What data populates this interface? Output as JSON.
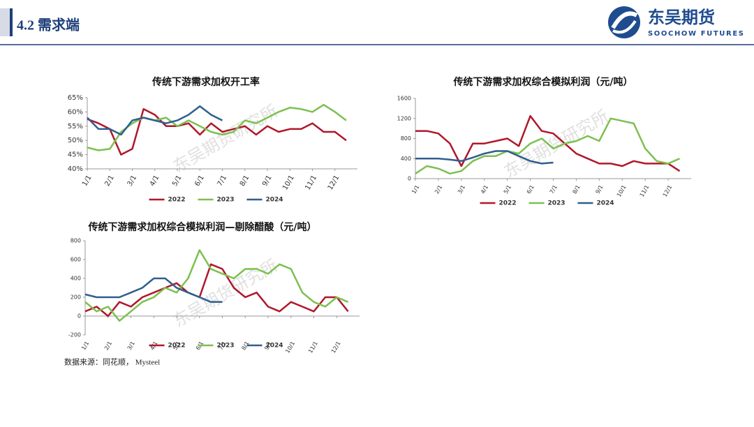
{
  "header": {
    "title": "4.2 需求端",
    "logo_cn": "东吴期货",
    "logo_en": "SOOCHOW FUTURES"
  },
  "watermark": "东吴期货研究所",
  "source": "数据来源：同花顺，  Mysteel",
  "chart_data": [
    {
      "type": "line",
      "title": "传统下游需求加权开工率",
      "categories": [
        "1/1",
        null,
        "2/1",
        null,
        "3/1",
        null,
        "4/1",
        null,
        "5/1",
        null,
        "6/1",
        null,
        "7/1",
        null,
        "8/1",
        null,
        "9/1",
        null,
        "10/1",
        null,
        "11/1",
        null,
        "12/1",
        null
      ],
      "ylim": [
        40,
        65
      ],
      "yticks": [
        {
          "value": 40,
          "label": "40%"
        },
        {
          "value": 45,
          "label": "45%"
        },
        {
          "value": 50,
          "label": "50%"
        },
        {
          "value": 55,
          "label": "55%"
        },
        {
          "value": 60,
          "label": "60%"
        },
        {
          "value": 65,
          "label": "65%"
        }
      ],
      "series": [
        {
          "name": "2022",
          "color": "#b0172a",
          "values": [
            57.5,
            56,
            54,
            45,
            47,
            61,
            59,
            55,
            55,
            56,
            52,
            56,
            53,
            54,
            55,
            52,
            55,
            53,
            54,
            54,
            56,
            53,
            53,
            50
          ]
        },
        {
          "name": "2023",
          "color": "#7cc04f",
          "values": [
            47.5,
            46.5,
            47,
            53,
            56,
            58,
            57,
            58,
            55,
            57,
            55,
            53,
            52,
            53,
            57,
            56,
            58,
            60,
            61.5,
            61,
            60,
            62.5,
            60,
            57
          ]
        },
        {
          "name": "2024",
          "color": "#2f5f8e",
          "values": [
            58,
            54,
            54,
            52,
            57,
            58,
            57,
            56,
            57,
            59,
            62,
            59,
            57,
            null,
            null,
            null,
            null,
            null,
            null,
            null,
            null,
            null,
            null,
            null
          ]
        }
      ]
    },
    {
      "type": "line",
      "title": "传统下游需求加权综合模拟利润（元/吨）",
      "categories": [
        "1/1",
        null,
        "2/1",
        null,
        "3/1",
        null,
        "4/1",
        null,
        "5/1",
        null,
        "6/1",
        null,
        "7/1",
        null,
        "8/1",
        null,
        "9/1",
        null,
        "10/1",
        null,
        "11/1",
        null,
        "12/1",
        null
      ],
      "ylim": [
        0,
        1600
      ],
      "yticks": [
        0,
        400,
        800,
        1200,
        1600
      ],
      "series": [
        {
          "name": "2022",
          "color": "#b0172a",
          "values": [
            950,
            950,
            900,
            700,
            250,
            700,
            700,
            750,
            800,
            650,
            1250,
            950,
            900,
            700,
            500,
            400,
            300,
            300,
            250,
            350,
            300,
            300,
            300,
            150
          ]
        },
        {
          "name": "2023",
          "color": "#7cc04f",
          "values": [
            100,
            250,
            200,
            100,
            150,
            350,
            450,
            450,
            550,
            500,
            700,
            800,
            600,
            700,
            750,
            850,
            750,
            1200,
            1150,
            1100,
            600,
            350,
            300,
            400
          ]
        },
        {
          "name": "2024",
          "color": "#2f5f8e",
          "values": [
            400,
            400,
            400,
            380,
            350,
            420,
            500,
            550,
            550,
            450,
            350,
            300,
            320,
            null,
            null,
            null,
            null,
            null,
            null,
            null,
            null,
            null,
            null,
            null
          ]
        }
      ]
    },
    {
      "type": "line",
      "title": "传统下游需求加权综合模拟利润—剔除醋酸（元/吨）",
      "categories": [
        "1/1",
        null,
        "2/1",
        null,
        "3/1",
        null,
        "4/1",
        null,
        "5/1",
        null,
        "6/1",
        null,
        "7/1",
        null,
        "8/1",
        null,
        "9/1",
        null,
        "10/1",
        null,
        "11/1",
        null,
        "12/1",
        null
      ],
      "ylim": [
        -200,
        800
      ],
      "yticks": [
        -200,
        0,
        200,
        400,
        600,
        800
      ],
      "series": [
        {
          "name": "2022",
          "color": "#b0172a",
          "values": [
            50,
            100,
            0,
            150,
            100,
            200,
            250,
            300,
            350,
            250,
            200,
            550,
            500,
            300,
            200,
            250,
            100,
            50,
            150,
            100,
            50,
            200,
            200,
            50
          ]
        },
        {
          "name": "2023",
          "color": "#7cc04f",
          "values": [
            150,
            50,
            100,
            -50,
            50,
            150,
            200,
            300,
            250,
            400,
            700,
            500,
            450,
            400,
            500,
            500,
            450,
            550,
            500,
            250,
            150,
            100,
            200,
            150
          ]
        },
        {
          "name": "2024",
          "color": "#2f5f8e",
          "values": [
            230,
            200,
            200,
            200,
            250,
            300,
            400,
            400,
            300,
            250,
            200,
            150,
            150,
            null,
            null,
            null,
            null,
            null,
            null,
            null,
            null,
            null,
            null,
            null
          ]
        }
      ]
    }
  ]
}
